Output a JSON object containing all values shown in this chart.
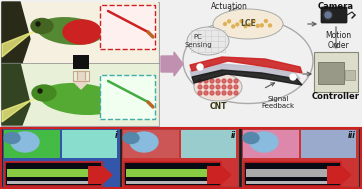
{
  "bg_color": "#f0f0f0",
  "labels": {
    "actuation": "Actuation",
    "lce": "LCE",
    "pc_sensing": "PC\nSensing",
    "cnt": "CNT",
    "signal_feedback": "Signal\nFeedback",
    "camera": "Camera",
    "motion_order": "Motion\nOrder",
    "controller": "Controller"
  },
  "panel_labels": [
    "i",
    "ii",
    "iii"
  ],
  "upper_chameleon_bg": "#f5f0e0",
  "lower_chameleon_bg": "#e8f0d8",
  "tl_outer_bg": "#e8e8e0",
  "red_color": "#cc2222",
  "green_chameleon": "#558833",
  "dark_tree": "#2a2a18",
  "beam_yellow": "#f0f080",
  "arrow_pink": "#c090b0",
  "lce_strip_red": "#cc2222",
  "lce_strip_black": "#1a1a1a",
  "pc_strip_gray": "#aaaaaa",
  "loop_ellipse_color": "#dddddd",
  "lce_callout_bg": "#f5ead8",
  "cnt_callout_bg": "#f0e0d8",
  "pc_callout_bg": "#e8e8e8",
  "camera_body": "#222222",
  "controller_body": "#dddddd",
  "bottom_outer_bg": "#222222",
  "bottom_border_color": "#cc2222",
  "panel1_main_bg": "#3355aa",
  "panel1_top_green": "#44cc44",
  "panel1_top_teal": "#88ddcc",
  "panel1_right_bg": "#223388",
  "panel2_main_bg": "#cc3333",
  "panel2_top_pink": "#ddaaaa",
  "panel2_top_teal": "#aadddd",
  "panel2_right_bg": "#993333",
  "panel3_main_bg": "#cc3333",
  "panel3_top_pink": "#dd88aa",
  "panel3_right_bg": "#993333",
  "sensor_bar_green": "#88cc44",
  "sensor_bar_white": "#eeeeee",
  "sensor_bar_gray": "#aaaaaa",
  "red_arrow_color": "#cc2222",
  "chameleon_blue_body": "#88bbdd",
  "chameleon_blue_dark": "#5588aa"
}
